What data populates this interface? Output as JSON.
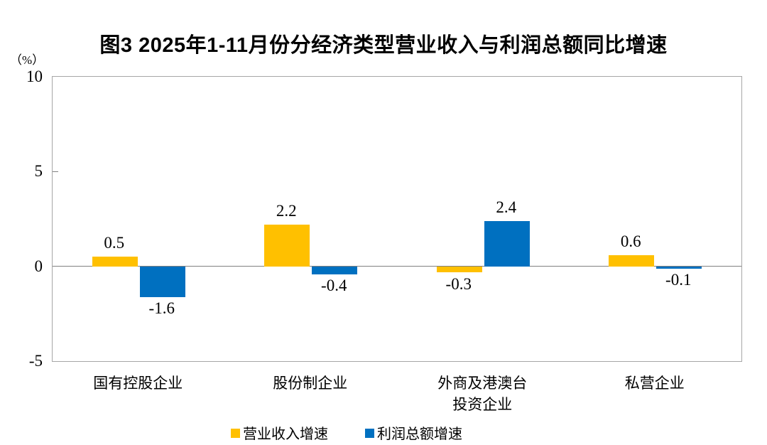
{
  "chart_data": {
    "type": "bar",
    "title": "图3  2025年1-11月份分经济类型营业收入与利润总额同比增速",
    "unit_label": "（%）",
    "categories": [
      "国有控股企业",
      "股份制企业",
      "外商及港澳台\n投资企业",
      "私营企业"
    ],
    "series": [
      {
        "name": "营业收入增速",
        "color": "#FFC000",
        "values": [
          0.5,
          2.2,
          -0.3,
          0.6
        ]
      },
      {
        "name": "利润总额增速",
        "color": "#0070C0",
        "values": [
          -1.6,
          -0.4,
          2.4,
          -0.1
        ]
      }
    ],
    "ylim": [
      -5,
      10
    ],
    "yticks": [
      10,
      5,
      0,
      -5
    ],
    "grid": false,
    "legend_position": "bottom",
    "value_labels_shown": true
  },
  "colors": {
    "background": "#ffffff",
    "plot_border": "#a6a6a6",
    "zero_line": "#808080",
    "text": "#000000"
  }
}
